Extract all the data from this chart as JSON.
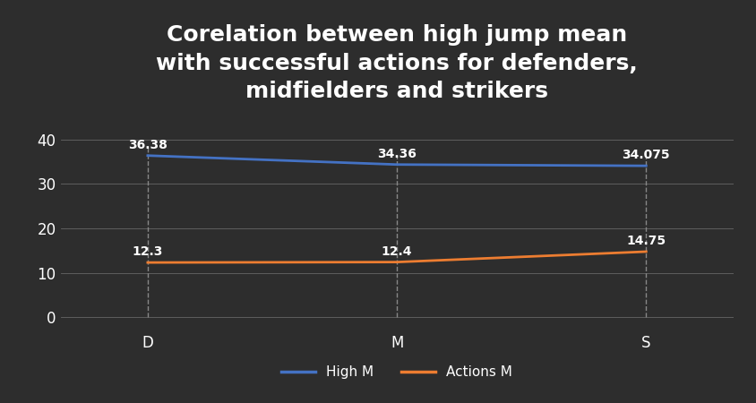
{
  "title": "Corelation between high jump mean\nwith successful actions for defenders,\nmidfielders and strikers",
  "categories": [
    "D",
    "M",
    "S"
  ],
  "high_m": [
    36.38,
    34.36,
    34.075
  ],
  "actions_m": [
    12.3,
    12.4,
    14.75
  ],
  "high_m_label": "High M",
  "actions_m_label": "Actions M",
  "high_m_color": "#4472C4",
  "actions_m_color": "#ED7D31",
  "background_color": "#2d2d2d",
  "text_color": "#ffffff",
  "grid_color": "#666666",
  "dashed_color": "#888888",
  "yticks": [
    0,
    10,
    20,
    30,
    40
  ],
  "ylim": [
    -3,
    46
  ],
  "title_fontsize": 18,
  "axis_label_fontsize": 12,
  "annotation_fontsize": 10,
  "legend_fontsize": 11,
  "line_width": 2.0
}
